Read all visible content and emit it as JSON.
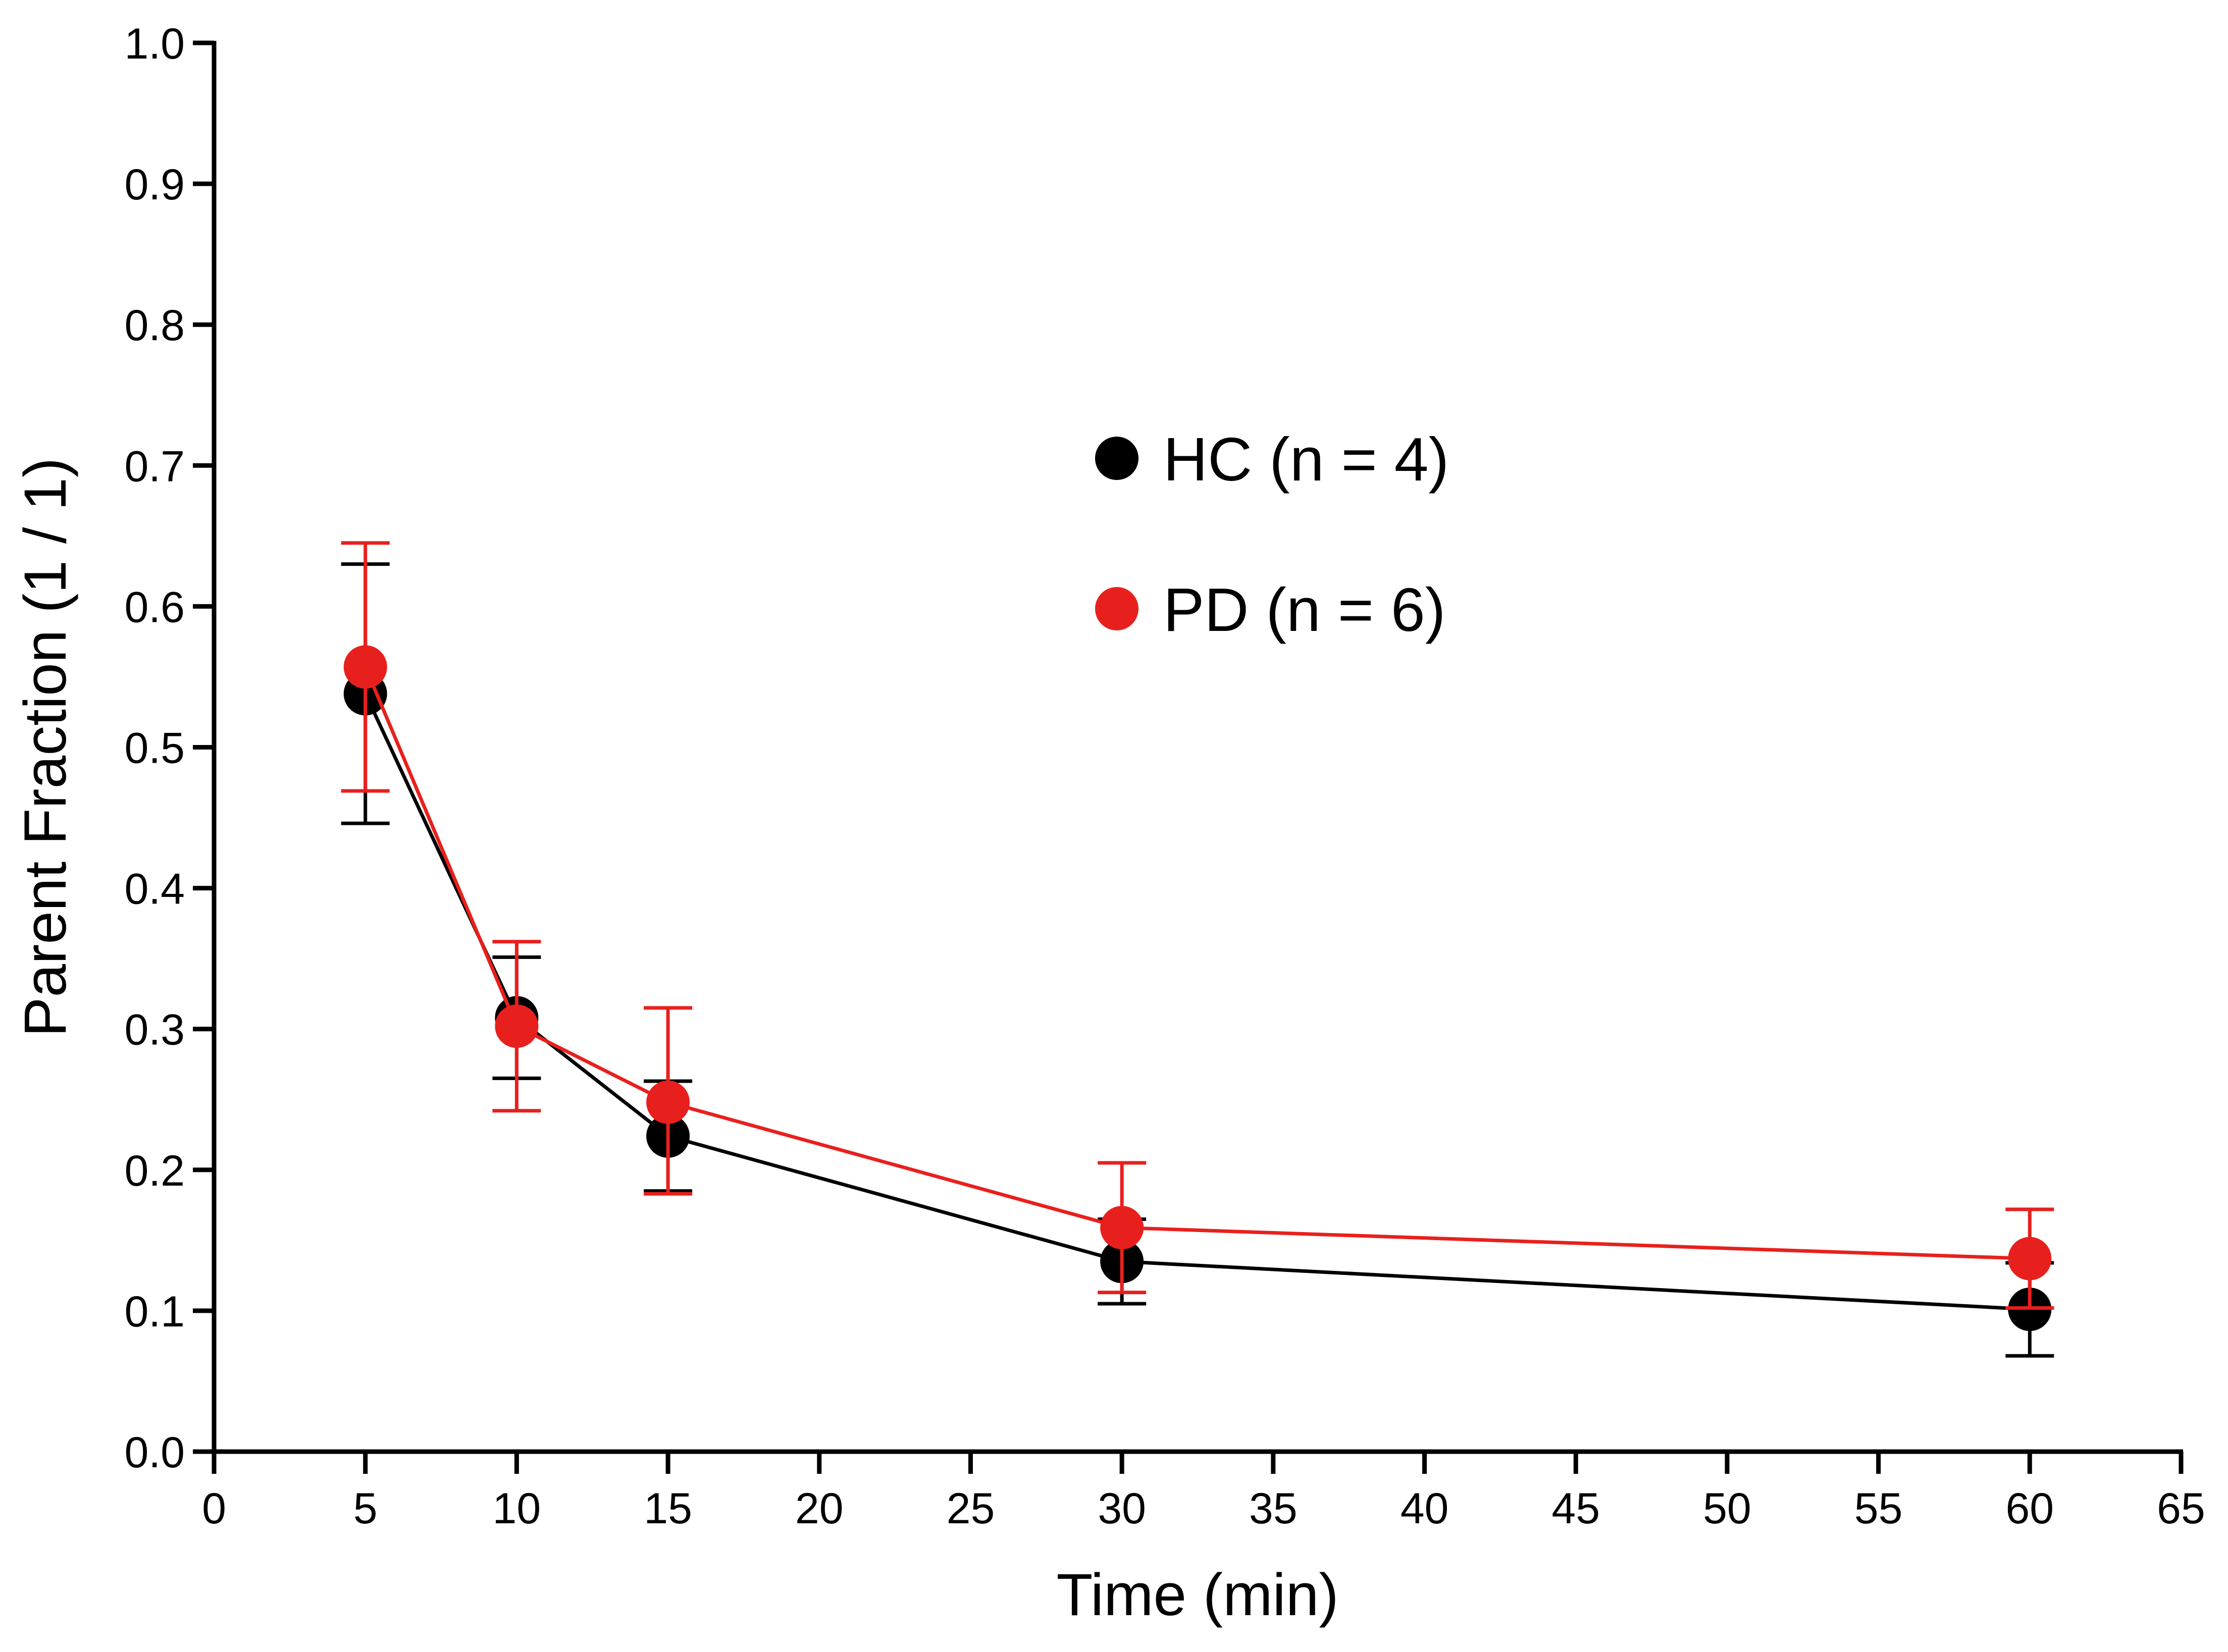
{
  "chart_data": {
    "type": "line",
    "title": "",
    "xlabel": "Time (min)",
    "ylabel": "Parent Fraction (1 / 1)",
    "xlim": [
      0,
      65
    ],
    "ylim": [
      0.0,
      1.0
    ],
    "x_ticks": [
      "0",
      "5",
      "10",
      "15",
      "20",
      "25",
      "30",
      "35",
      "40",
      "45",
      "50",
      "55",
      "60",
      "65"
    ],
    "y_ticks": [
      "0.0",
      "0.1",
      "0.2",
      "0.3",
      "0.4",
      "0.5",
      "0.6",
      "0.7",
      "0.8",
      "0.9",
      "1.0"
    ],
    "grid": false,
    "legend_position": "center-right",
    "series": [
      {
        "name": "HC (n = 4)",
        "color": "#000000",
        "x": [
          5,
          10,
          15,
          30,
          60
        ],
        "y": [
          0.538,
          0.308,
          0.224,
          0.135,
          0.101
        ],
        "err_low": [
          0.092,
          0.043,
          0.039,
          0.03,
          0.033
        ],
        "err_high": [
          0.092,
          0.043,
          0.039,
          0.03,
          0.033
        ]
      },
      {
        "name": "PD (n = 6)",
        "color": "#e8201d",
        "x": [
          5,
          10,
          15,
          30,
          60
        ],
        "y": [
          0.557,
          0.302,
          0.248,
          0.159,
          0.137
        ],
        "err_low": [
          0.088,
          0.06,
          0.065,
          0.046,
          0.035
        ],
        "err_high": [
          0.088,
          0.06,
          0.067,
          0.046,
          0.035
        ]
      }
    ]
  }
}
